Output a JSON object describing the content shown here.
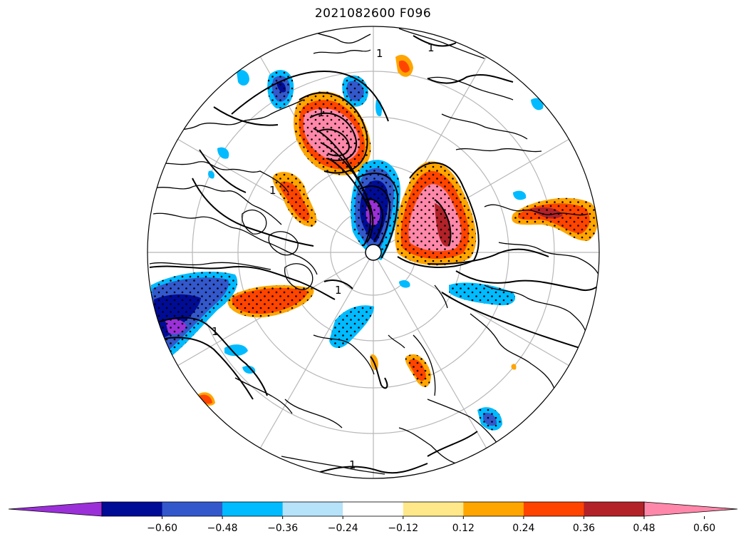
{
  "title": "2021082600 F096",
  "map": {
    "projection": "north-polar-stereographic",
    "contour_label": "1",
    "graticule_color": "#b8b8b8",
    "coastline_color": "#000000",
    "stippling": "significance-dots"
  },
  "colorbar": {
    "extend": "both",
    "bins": [
      {
        "color": "#9b30d8"
      },
      {
        "color": "#000c96"
      },
      {
        "color": "#3358cc"
      },
      {
        "color": "#00bbff"
      },
      {
        "color": "#b6e2fa"
      },
      {
        "color": "#ffffff"
      },
      {
        "color": "#ffe88a"
      },
      {
        "color": "#ffa500"
      },
      {
        "color": "#ff4400"
      },
      {
        "color": "#b22228"
      },
      {
        "color": "#ff88aa"
      }
    ],
    "tick_labels": [
      "−0.60",
      "−0.48",
      "−0.36",
      "−0.24",
      "−0.12",
      "0.12",
      "0.24",
      "0.36",
      "0.48",
      "0.60"
    ]
  }
}
